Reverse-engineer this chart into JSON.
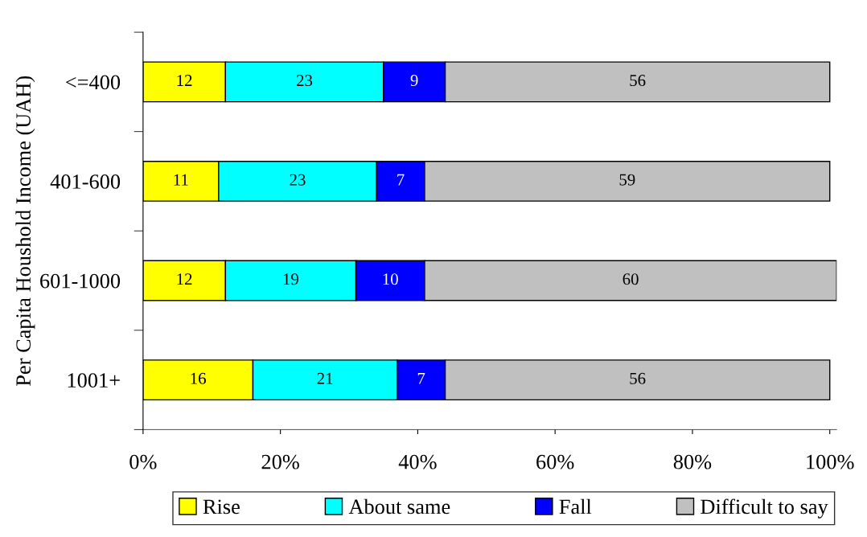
{
  "chart_data": {
    "type": "bar",
    "orientation": "horizontal",
    "stacked": true,
    "ylabel": "Per Capita Houshold Income (UAH)",
    "categories": [
      "<=400",
      "401-600",
      "601-1000",
      "1001+"
    ],
    "series": [
      {
        "name": "Rise",
        "color": "#ffff00",
        "values": [
          12,
          11,
          12,
          16
        ]
      },
      {
        "name": "About same",
        "color": "#00ffff",
        "values": [
          23,
          23,
          19,
          21
        ]
      },
      {
        "name": "Fall",
        "color": "#0000ff",
        "values": [
          9,
          7,
          10,
          7
        ]
      },
      {
        "name": "Difficult to say",
        "color": "#c0c0c0",
        "values": [
          56,
          59,
          60,
          56
        ]
      }
    ],
    "xlim": [
      0,
      101
    ],
    "xticks": [
      {
        "value": 0,
        "label": "0%"
      },
      {
        "value": 20,
        "label": "20%"
      },
      {
        "value": 40,
        "label": "40%"
      },
      {
        "value": 60,
        "label": "60%"
      },
      {
        "value": 80,
        "label": "80%"
      },
      {
        "value": 100,
        "label": "100%"
      }
    ],
    "data_labels": true,
    "legend": "bottom",
    "grid": false
  }
}
